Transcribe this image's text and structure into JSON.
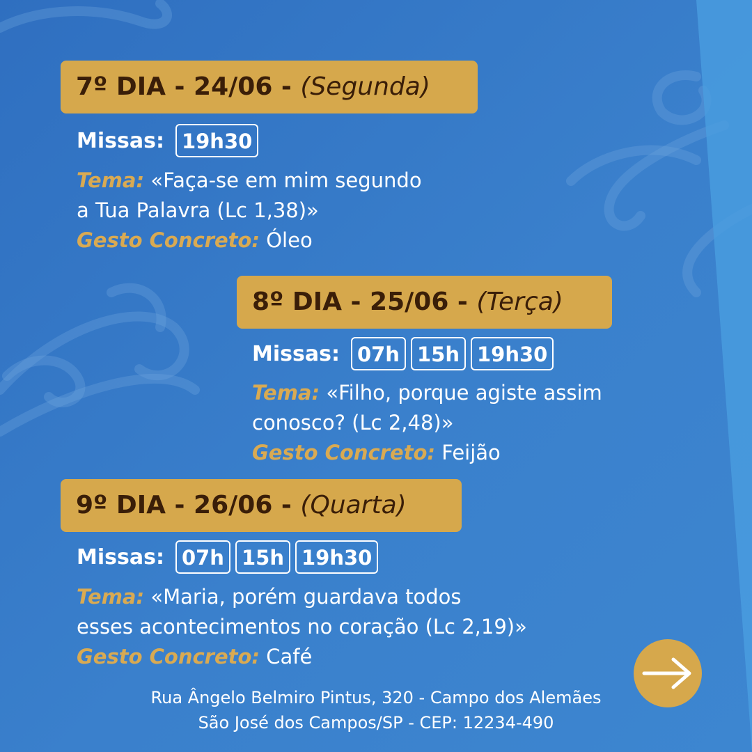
{
  "colors": {
    "background": "#3a80cc",
    "accent": "#d6a84c",
    "header_text": "#3a1e08",
    "label_gold": "#d9aa52"
  },
  "days": [
    {
      "header": "7º DIA - 24/06 -",
      "weekday": "(Segunda)",
      "masses_label": "Missas:",
      "times": [
        "19h30"
      ],
      "theme_label": "Tema:",
      "theme_line1": "«Faça-se em mim segundo",
      "theme_line2": "a Tua Palavra (Lc 1,38)»",
      "gesture_label": "Gesto Concreto:",
      "gesture": "Óleo"
    },
    {
      "header": "8º DIA - 25/06 -",
      "weekday": "(Terça)",
      "masses_label": "Missas:",
      "times": [
        "07h",
        "15h",
        "19h30"
      ],
      "theme_label": "Tema:",
      "theme_line1": "«Filho, porque agiste assim",
      "theme_line2": "conosco? (Lc 2,48)»",
      "gesture_label": "Gesto Concreto:",
      "gesture": "Feijão"
    },
    {
      "header": "9º DIA - 26/06 -",
      "weekday": "(Quarta)",
      "masses_label": "Missas:",
      "times": [
        "07h",
        "15h",
        "19h30"
      ],
      "theme_label": "Tema:",
      "theme_line1": "«Maria, porém guardava todos",
      "theme_line2": "esses acontecimentos no coração (Lc 2,19)»",
      "gesture_label": "Gesto Concreto:",
      "gesture": "Café"
    }
  ],
  "icons": {
    "next": "arrow-right-icon"
  },
  "address": {
    "line1": "Rua Ângelo Belmiro Pintus, 320 - Campo dos Alemães",
    "line2": "São José dos Campos/SP - CEP: 12234-490"
  }
}
